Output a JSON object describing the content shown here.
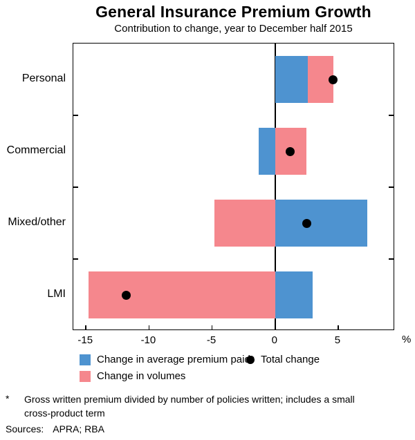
{
  "chart_data": {
    "type": "bar",
    "orientation": "horizontal",
    "title": "General Insurance Premium Growth",
    "subtitle": "Contribution to change, year to December half 2015",
    "categories": [
      "Personal",
      "Commercial",
      "Mixed/other",
      "LMI"
    ],
    "series": [
      {
        "name": "Change in average premium paid*",
        "color": "#4E93D0",
        "values": [
          2.6,
          -1.3,
          7.3,
          3.0
        ]
      },
      {
        "name": "Change in volumes",
        "color": "#F5878D",
        "values": [
          2.0,
          2.5,
          -4.8,
          -14.8
        ]
      }
    ],
    "markers": {
      "name": "Total change",
      "color": "#000000",
      "values": [
        4.6,
        1.2,
        2.5,
        -11.8
      ]
    },
    "xlim": [
      -16,
      9.5
    ],
    "xticks": [
      -15,
      -10,
      -5,
      0,
      5
    ],
    "unit_label": "%",
    "grid": false,
    "legend_position": "bottom"
  },
  "footnote": {
    "marker": "*",
    "text": "Gross written premium divided by number of policies written; includes a small cross-product term"
  },
  "sources": {
    "label": "Sources:",
    "value": "APRA; RBA"
  }
}
